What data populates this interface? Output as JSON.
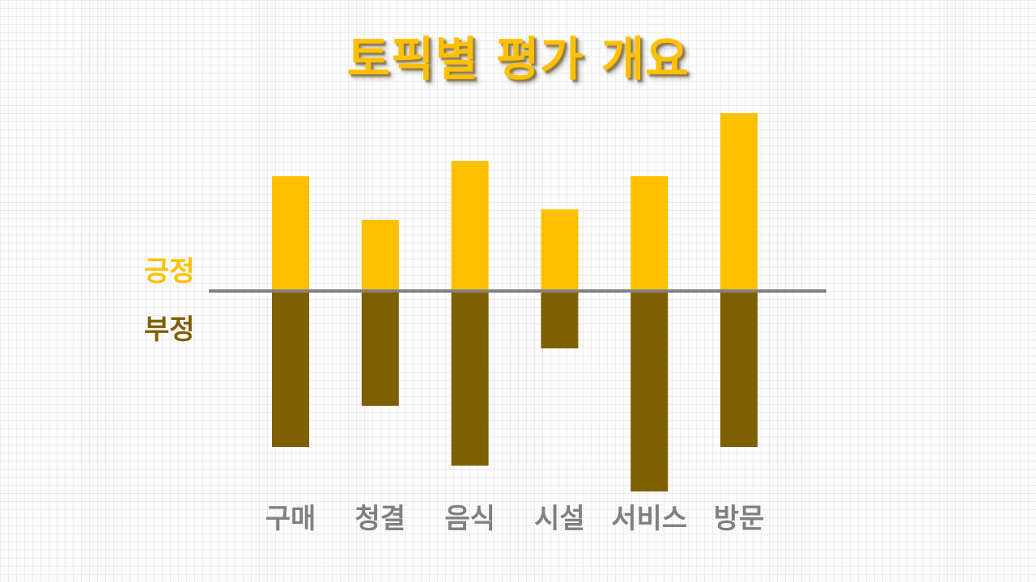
{
  "title": "토픽별 평가 개요",
  "legend": {
    "positive": "긍정",
    "negative": "부정"
  },
  "colors": {
    "positive": "#FFC000",
    "negative": "#7F6000",
    "baseline": "#808080",
    "category_label": "#808080"
  },
  "chart_data": {
    "type": "bar",
    "categories": [
      "구매",
      "청결",
      "음식",
      "시설",
      "서비스",
      "방문"
    ],
    "series": [
      {
        "name": "긍정",
        "values": [
          142,
          88,
          161,
          101,
          142,
          220
        ]
      },
      {
        "name": "부정",
        "values": [
          -193,
          -142,
          -216,
          -71,
          -248,
          -193
        ]
      }
    ],
    "title": "토픽별 평가 개요",
    "xlabel": "",
    "ylabel": "",
    "ylim": [
      -260,
      230
    ],
    "grid": false,
    "stacked": "diverging"
  }
}
